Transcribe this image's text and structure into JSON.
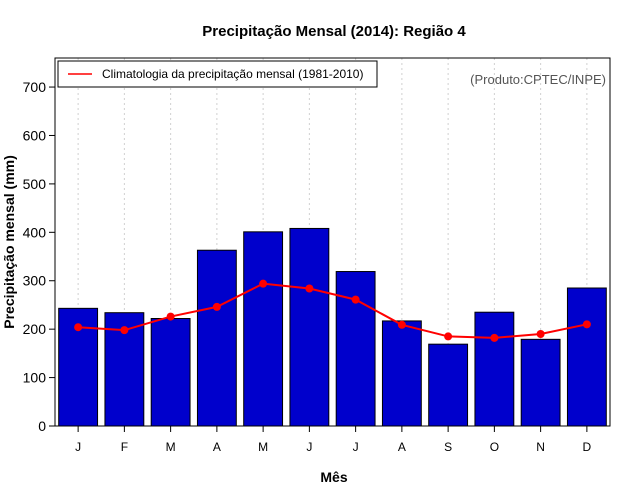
{
  "chart_data": {
    "type": "bar",
    "title": "Precipitação Mensal (2014): Região 4",
    "xlabel": "Mês",
    "ylabel": "Precipitação mensal (mm)",
    "categories": [
      "J",
      "F",
      "M",
      "A",
      "M",
      "J",
      "J",
      "A",
      "S",
      "O",
      "N",
      "D"
    ],
    "ylim": [
      0,
      760
    ],
    "yticks": [
      0,
      100,
      200,
      300,
      400,
      500,
      600,
      700
    ],
    "grid": "vertical dashed",
    "series": [
      {
        "name": "Precipitação mensal (2014)",
        "kind": "bar",
        "color": "#0000cc",
        "values": [
          243,
          234,
          222,
          363,
          401,
          408,
          319,
          217,
          169,
          235,
          179,
          285
        ]
      },
      {
        "name": "Climatologia da precipitação mensal (1981-2010)",
        "kind": "line",
        "color": "#ff0000",
        "values": [
          204,
          198,
          226,
          246,
          294,
          284,
          261,
          209,
          185,
          182,
          190,
          210
        ]
      }
    ],
    "legend": {
      "position": "top-left",
      "entries": [
        "Climatologia da precipitação mensal (1981-2010)"
      ]
    },
    "annotation": "(Produto:CPTEC/INPE)"
  }
}
